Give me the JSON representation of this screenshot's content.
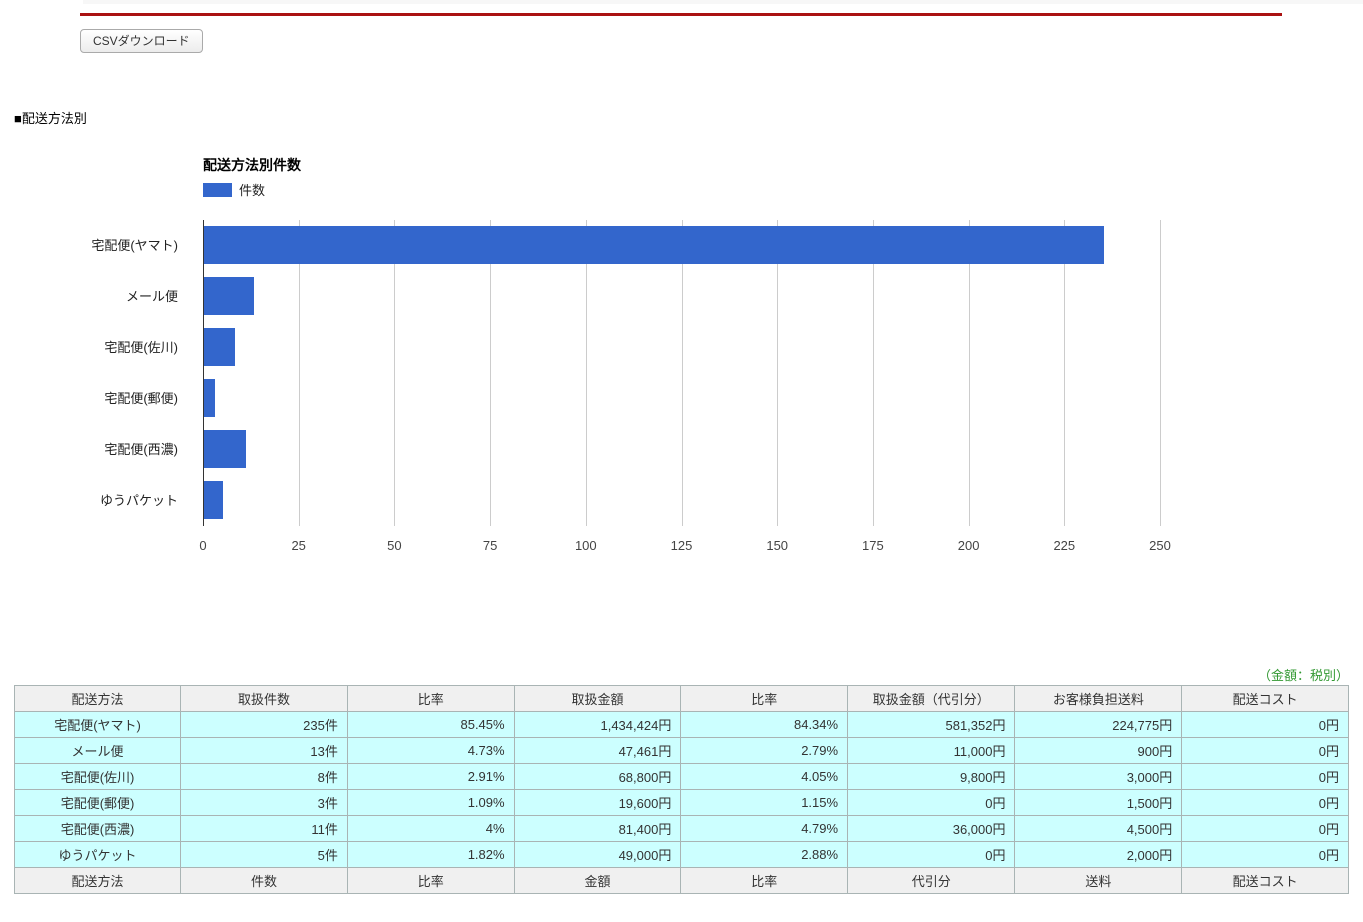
{
  "page": {
    "top_rule_color": "#aa1111",
    "csv_button_label": "CSVダウンロード",
    "section_label": "■配送方法別"
  },
  "chart_data": {
    "type": "bar",
    "orientation": "horizontal",
    "title": "配送方法別件数",
    "legend": [
      {
        "label": "件数",
        "color": "#3366cc",
        "position": "top"
      }
    ],
    "categories": [
      "宅配便(ヤマト)",
      "メール便",
      "宅配便(佐川)",
      "宅配便(郵便)",
      "宅配便(西濃)",
      "ゆうパケット"
    ],
    "values": [
      235,
      13,
      8,
      3,
      11,
      5
    ],
    "xlabel": "",
    "ylabel": "",
    "xlim": [
      0,
      250
    ],
    "x_ticks": [
      0,
      25,
      50,
      75,
      100,
      125,
      150,
      175,
      200,
      225,
      250
    ],
    "grid": true,
    "bar_color": "#3366cc"
  },
  "table": {
    "note": "（金額：税別）",
    "note_color": "#339933",
    "headers": [
      "配送方法",
      "取扱件数",
      "比率",
      "取扱金額",
      "比率",
      "取扱金額（代引分）",
      "お客様負担送料",
      "配送コスト"
    ],
    "rows": [
      [
        "宅配便(ヤマト)",
        "235件",
        "85.45%",
        "1,434,424円",
        "84.34%",
        "581,352円",
        "224,775円",
        "0円"
      ],
      [
        "メール便",
        "13件",
        "4.73%",
        "47,461円",
        "2.79%",
        "11,000円",
        "900円",
        "0円"
      ],
      [
        "宅配便(佐川)",
        "8件",
        "2.91%",
        "68,800円",
        "4.05%",
        "9,800円",
        "3,000円",
        "0円"
      ],
      [
        "宅配便(郵便)",
        "3件",
        "1.09%",
        "19,600円",
        "1.15%",
        "0円",
        "1,500円",
        "0円"
      ],
      [
        "宅配便(西濃)",
        "11件",
        "4%",
        "81,400円",
        "4.79%",
        "36,000円",
        "4,500円",
        "0円"
      ],
      [
        "ゆうパケット",
        "5件",
        "1.82%",
        "49,000円",
        "2.88%",
        "0円",
        "2,000円",
        "0円"
      ]
    ],
    "footer": [
      "配送方法",
      "件数",
      "比率",
      "金額",
      "比率",
      "代引分",
      "送料",
      "配送コスト"
    ]
  }
}
